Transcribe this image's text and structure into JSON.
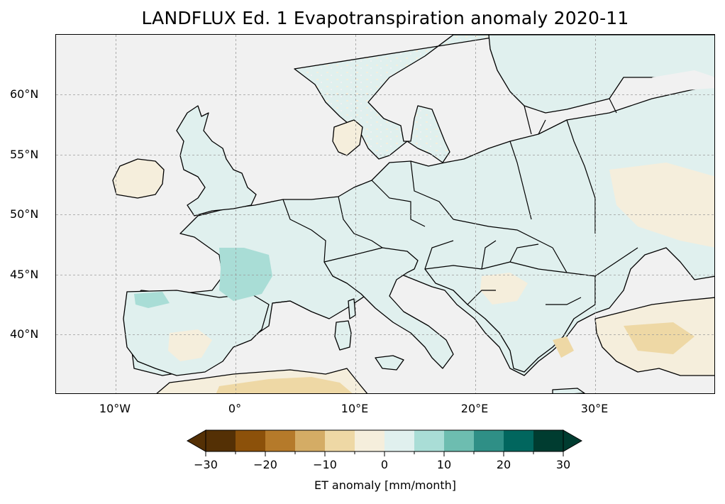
{
  "title": "LANDFLUX Ed. 1 Evapotranspiration anomaly 2020-11",
  "map": {
    "projection": "PlateCarree",
    "lon_range": [
      -15,
      40
    ],
    "lat_range": [
      35,
      65
    ],
    "gridlines": true,
    "coastlines": true,
    "borders": true,
    "ocean_color": "#f1f1f1"
  },
  "lat_ticks": [
    {
      "value": 60,
      "label": "60°N"
    },
    {
      "value": 55,
      "label": "55°N"
    },
    {
      "value": 50,
      "label": "50°N"
    },
    {
      "value": 45,
      "label": "45°N"
    },
    {
      "value": 40,
      "label": "40°N"
    }
  ],
  "lon_ticks": [
    {
      "value": -10,
      "label": "10°W"
    },
    {
      "value": 0,
      "label": "0°"
    },
    {
      "value": 10,
      "label": "10°E"
    },
    {
      "value": 20,
      "label": "20°E"
    },
    {
      "value": 30,
      "label": "30°E"
    }
  ],
  "colorbar": {
    "label": "ET anomaly [mm/month]",
    "extend": "both",
    "boundaries": [
      -30,
      -25,
      -20,
      -15,
      -10,
      -5,
      0,
      5,
      10,
      15,
      20,
      25,
      30
    ],
    "colors": [
      "#543005",
      "#8c510a",
      "#b57a2a",
      "#d4ac65",
      "#eed8a5",
      "#f5eedc",
      "#e0f0ee",
      "#a9ddd6",
      "#6dbdb0",
      "#2f8f86",
      "#01665e",
      "#003c30"
    ],
    "ticks": [
      {
        "value": -30,
        "label": "−30"
      },
      {
        "value": -20,
        "label": "−20"
      },
      {
        "value": -10,
        "label": "−10"
      },
      {
        "value": 0,
        "label": "0"
      },
      {
        "value": 10,
        "label": "10"
      },
      {
        "value": 20,
        "label": "20"
      },
      {
        "value": 30,
        "label": "30"
      }
    ]
  }
}
